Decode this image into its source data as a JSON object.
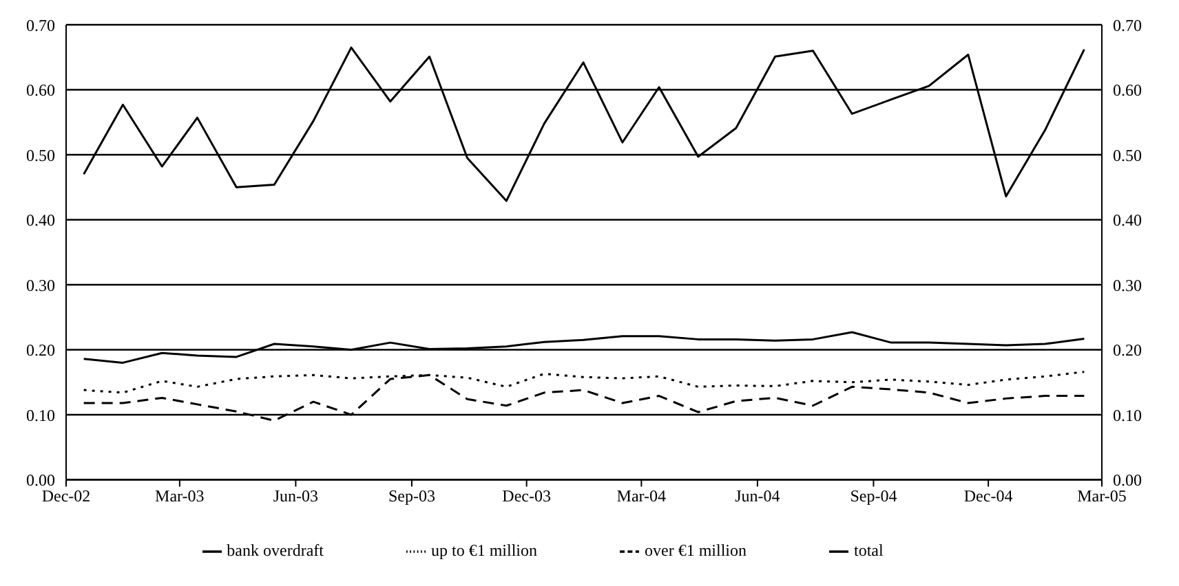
{
  "chart_data": {
    "type": "line",
    "x": [
      "2002-12-15",
      "2003-01-15",
      "2003-02-15",
      "2003-03-15",
      "2003-04-15",
      "2003-05-15",
      "2003-06-15",
      "2003-07-15",
      "2003-08-15",
      "2003-09-15",
      "2003-10-15",
      "2003-11-15",
      "2003-12-15",
      "2004-01-15",
      "2004-02-15",
      "2004-03-15",
      "2004-04-15",
      "2004-05-15",
      "2004-06-15",
      "2004-07-15",
      "2004-08-15",
      "2004-09-15",
      "2004-10-15",
      "2004-11-15",
      "2004-12-15",
      "2005-01-15",
      "2005-02-15"
    ],
    "xlim": [
      "2002-12-01",
      "2005-03-01"
    ],
    "xticks": [
      {
        "value": "2002-12-01",
        "label": "Dec-02"
      },
      {
        "value": "2003-03-01",
        "label": "Mar-03"
      },
      {
        "value": "2003-06-01",
        "label": "Jun-03"
      },
      {
        "value": "2003-09-01",
        "label": "Sep-03"
      },
      {
        "value": "2003-12-01",
        "label": "Dec-03"
      },
      {
        "value": "2004-03-01",
        "label": "Mar-04"
      },
      {
        "value": "2004-06-01",
        "label": "Jun-04"
      },
      {
        "value": "2004-09-01",
        "label": "Sep-04"
      },
      {
        "value": "2004-12-01",
        "label": "Dec-04"
      },
      {
        "value": "2005-03-01",
        "label": "Mar-05"
      }
    ],
    "ylim": [
      0,
      0.7
    ],
    "yticks": [
      {
        "value": 0,
        "label": "0.00"
      },
      {
        "value": 0.1,
        "label": "0.10"
      },
      {
        "value": 0.2,
        "label": "0.20"
      },
      {
        "value": 0.3,
        "label": "0.30"
      },
      {
        "value": 0.4,
        "label": "0.40"
      },
      {
        "value": 0.5,
        "label": "0.50"
      },
      {
        "value": 0.6,
        "label": "0.60"
      },
      {
        "value": 0.7,
        "label": "0.70"
      }
    ],
    "y2lim": [
      0,
      0.7
    ],
    "y2ticks": [
      {
        "value": 0,
        "label": "0.00"
      },
      {
        "value": 0.1,
        "label": "0.10"
      },
      {
        "value": 0.2,
        "label": "0.20"
      },
      {
        "value": 0.3,
        "label": "0.30"
      },
      {
        "value": 0.4,
        "label": "0.40"
      },
      {
        "value": 0.5,
        "label": "0.50"
      },
      {
        "value": 0.6,
        "label": "0.60"
      },
      {
        "value": 0.7,
        "label": "0.70"
      }
    ],
    "grid": "y",
    "legend": "bottom",
    "marker": "none",
    "series": [
      {
        "name": "bank overdraft",
        "color": "#000000",
        "line_style": "solid",
        "values": [
          0.47,
          0.577,
          0.482,
          0.557,
          0.45,
          0.454,
          0.552,
          0.665,
          0.582,
          0.651,
          0.495,
          0.429,
          0.548,
          0.642,
          0.519,
          0.604,
          0.497,
          0.541,
          0.651,
          0.66,
          0.563,
          0.585,
          0.606,
          0.654,
          0.436,
          0.538,
          0.662
        ]
      },
      {
        "name": "up to €1 million",
        "color": "#000000",
        "line_style": "dotted",
        "values": [
          0.138,
          0.134,
          0.152,
          0.143,
          0.155,
          0.159,
          0.161,
          0.156,
          0.159,
          0.161,
          0.157,
          0.143,
          0.163,
          0.158,
          0.156,
          0.159,
          0.143,
          0.145,
          0.144,
          0.152,
          0.15,
          0.154,
          0.151,
          0.146,
          0.154,
          0.159,
          0.166
        ]
      },
      {
        "name": "over €1 million",
        "color": "#000000",
        "line_style": "dashed",
        "values": [
          0.118,
          0.118,
          0.126,
          0.116,
          0.105,
          0.091,
          0.12,
          0.1,
          0.155,
          0.161,
          0.124,
          0.114,
          0.134,
          0.138,
          0.118,
          0.129,
          0.104,
          0.121,
          0.126,
          0.114,
          0.143,
          0.139,
          0.134,
          0.118,
          0.125,
          0.129,
          0.129
        ]
      },
      {
        "name": "total",
        "color": "#000000",
        "line_style": "solid",
        "values": [
          0.186,
          0.18,
          0.195,
          0.191,
          0.189,
          0.209,
          0.205,
          0.2,
          0.211,
          0.201,
          0.202,
          0.205,
          0.212,
          0.215,
          0.221,
          0.221,
          0.216,
          0.216,
          0.214,
          0.216,
          0.227,
          0.211,
          0.211,
          0.209,
          0.207,
          0.209,
          0.217
        ]
      }
    ]
  }
}
